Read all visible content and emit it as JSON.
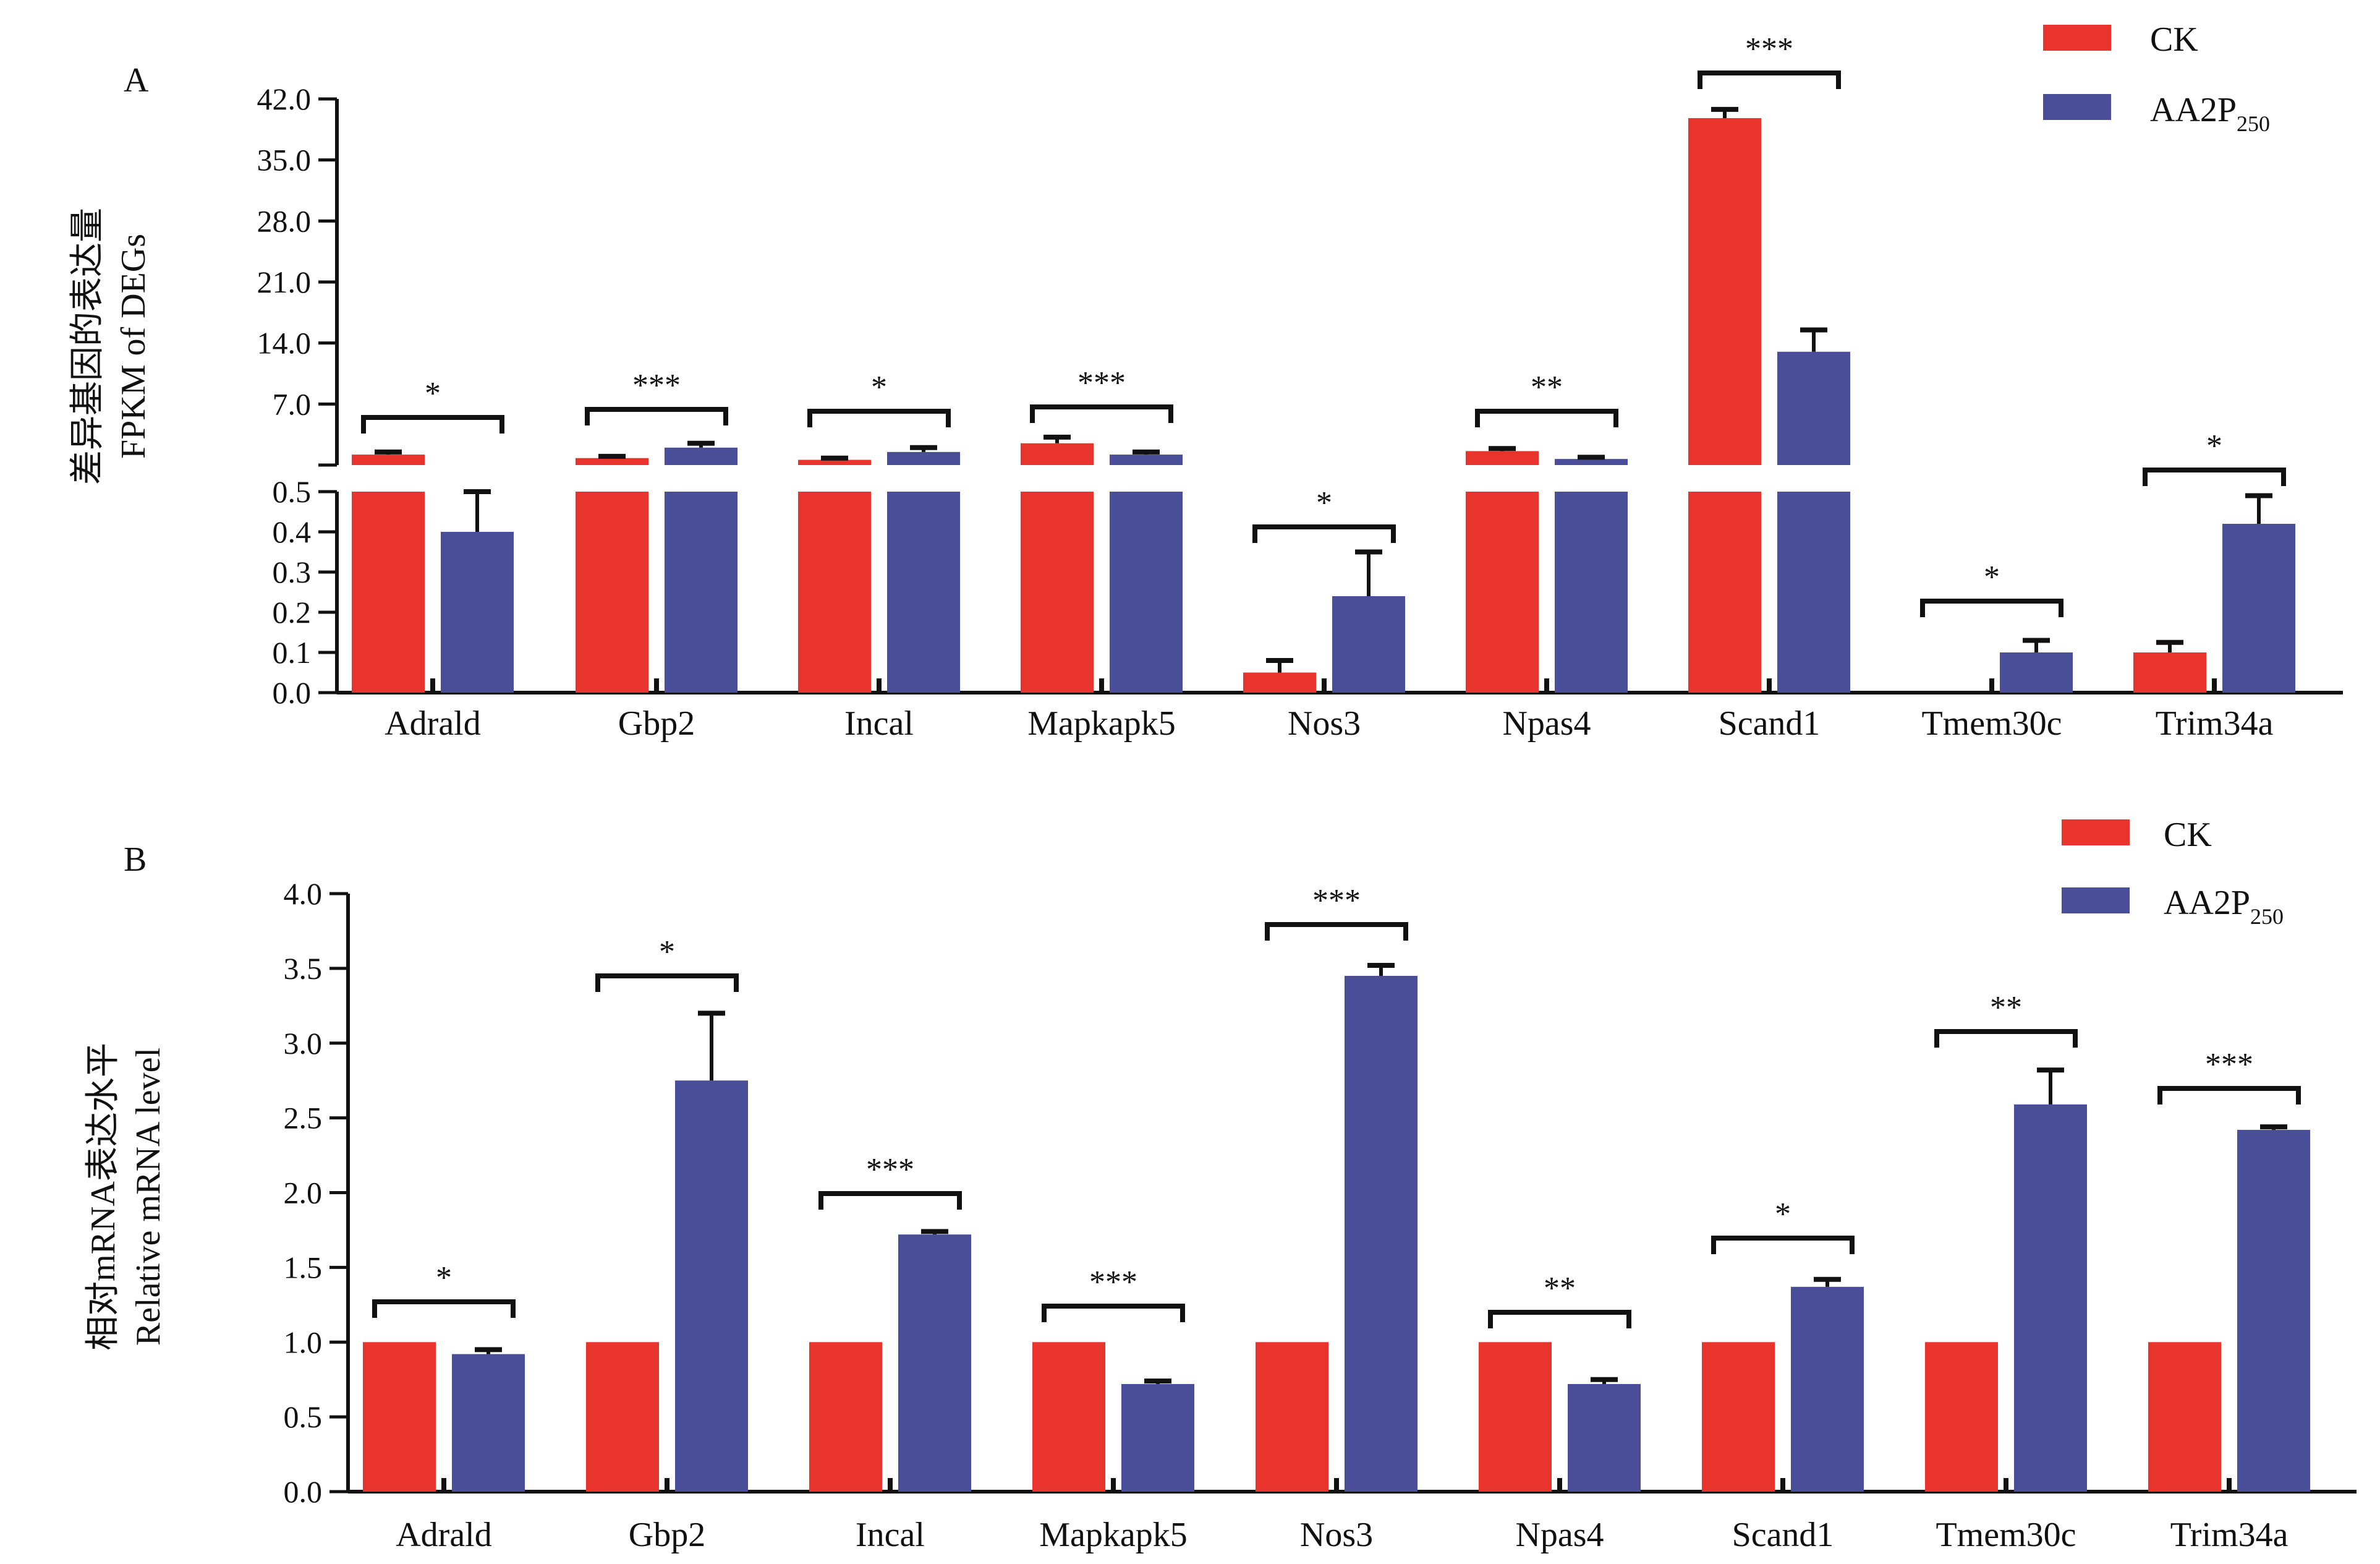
{
  "colors": {
    "ck": "#e8342d",
    "aa2p": "#4a4e99",
    "axis": "#111111"
  },
  "panel_a": {
    "letter": "A",
    "ylabel_cn": "差异基因的表达量",
    "ylabel_en": "FPKM of DEGs",
    "legend": {
      "ck": "CK",
      "aa2p_main": "AA2P",
      "aa2p_sub": "250"
    },
    "upper_ticks": [
      "42.0",
      "35.0",
      "28.0",
      "21.0",
      "14.0",
      "7.0"
    ],
    "lower_ticks": [
      "0.5",
      "0.4",
      "0.3",
      "0.2",
      "0.1",
      "0.0"
    ]
  },
  "panel_b": {
    "letter": "B",
    "ylabel_cn": "相对mRNA表达水平",
    "ylabel_en": "Relative mRNA level",
    "legend": {
      "ck": "CK",
      "aa2p_main": "AA2P",
      "aa2p_sub": "250"
    },
    "ticks": [
      "4.0",
      "3.5",
      "3.0",
      "2.5",
      "2.0",
      "1.5",
      "1.0",
      "0.5",
      "0.0"
    ]
  },
  "chart_data": [
    {
      "type": "bar",
      "title": "A",
      "xlabel": "",
      "ylabel": "差异基因的表达量 FPKM of DEGs",
      "categories": [
        "Adrald",
        "Gbp2",
        "Incal",
        "Mapkapk5",
        "Nos3",
        "Npas4",
        "Scand1",
        "Tmem30c",
        "Trim34a"
      ],
      "series": [
        {
          "name": "CK",
          "values": [
            1.2,
            0.8,
            0.6,
            2.5,
            0.05,
            1.6,
            39.8,
            0.0,
            0.1
          ],
          "errors": [
            0.3,
            0.2,
            0.2,
            0.7,
            0.03,
            0.3,
            1.0,
            0.0,
            0.025
          ]
        },
        {
          "name": "AA2P250",
          "values": [
            0.4,
            2.0,
            1.5,
            1.2,
            0.24,
            0.7,
            13.0,
            0.1,
            0.42
          ],
          "errors": [
            0.1,
            0.5,
            0.5,
            0.3,
            0.11,
            0.2,
            2.5,
            0.03,
            0.07
          ]
        }
      ],
      "significance": [
        "*",
        "***",
        "*",
        "***",
        "*",
        "**",
        "***",
        "*",
        "*"
      ],
      "axis_break": {
        "lower_ylim": [
          0,
          0.5
        ],
        "upper_ylim": [
          0,
          42
        ],
        "upper_ticks": [
          7,
          14,
          21,
          28,
          35,
          42
        ],
        "lower_ticks": [
          0,
          0.1,
          0.2,
          0.3,
          0.4,
          0.5
        ]
      },
      "legend_position": "top-right"
    },
    {
      "type": "bar",
      "title": "B",
      "xlabel": "",
      "ylabel": "相对mRNA表达水平 Relative mRNA level",
      "categories": [
        "Adrald",
        "Gbp2",
        "Incal",
        "Mapkapk5",
        "Nos3",
        "Npas4",
        "Scand1",
        "Tmem30c",
        "Trim34a"
      ],
      "series": [
        {
          "name": "CK",
          "values": [
            1.0,
            1.0,
            1.0,
            1.0,
            1.0,
            1.0,
            1.0,
            1.0,
            1.0
          ],
          "errors": [
            0,
            0,
            0,
            0,
            0,
            0,
            0,
            0,
            0
          ]
        },
        {
          "name": "AA2P250",
          "values": [
            0.92,
            2.75,
            1.72,
            0.72,
            3.45,
            0.72,
            1.37,
            2.59,
            2.42
          ],
          "errors": [
            0.03,
            0.45,
            0.02,
            0.02,
            0.07,
            0.03,
            0.05,
            0.23,
            0.02
          ]
        }
      ],
      "significance": [
        "*",
        "*",
        "***",
        "***",
        "***",
        "**",
        "*",
        "**",
        "***"
      ],
      "ylim": [
        0,
        4.0
      ],
      "ticks": [
        0,
        0.5,
        1.0,
        1.5,
        2.0,
        2.5,
        3.0,
        3.5,
        4.0
      ],
      "legend_position": "top-right"
    }
  ]
}
